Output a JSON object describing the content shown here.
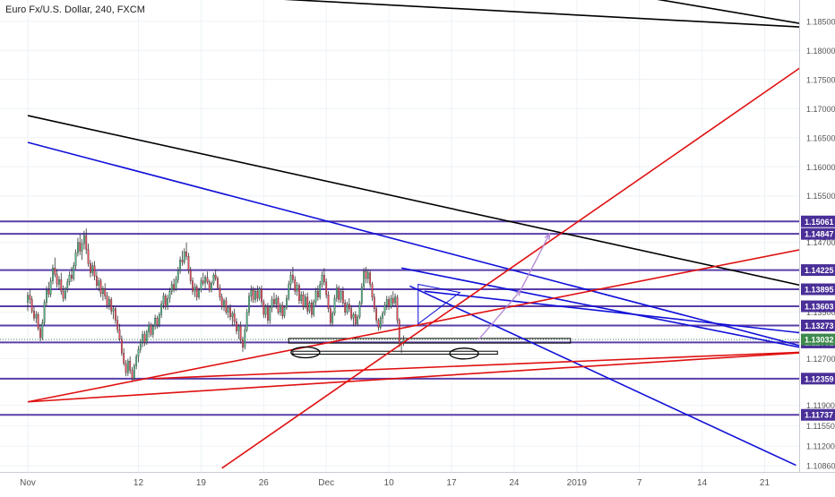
{
  "chart_data": {
    "type": "candlestick",
    "title": "Euro Fx/U.S. Dollar, 240, FXCM",
    "colors": {
      "up": "#53b987",
      "down": "#eb4d5c",
      "blue_line": "#1010d8",
      "red_line": "#e01010",
      "black_line": "#000000",
      "level_line": "#5a3ea8",
      "level_label_bg": "#4a2f98",
      "current_label_bg": "#3e8a4e",
      "projection": "#b58ad2",
      "grid": "#eef2f6",
      "axis_text": "#555555"
    },
    "y_axis": {
      "range": [
        1.1835,
        1.1888
      ],
      "ticks": [
        "1.18500",
        "1.18000",
        "1.17500",
        "1.17000",
        "1.16500",
        "1.16000",
        "1.15500",
        "1.14700",
        "1.13500",
        "1.12700",
        "1.11900",
        "1.11550",
        "1.11200",
        "1.10860"
      ]
    },
    "x_axis": {
      "labels": [
        {
          "text": "Nov",
          "bar": 0
        },
        {
          "text": "12",
          "bar": 53
        },
        {
          "text": "19",
          "bar": 83
        },
        {
          "text": "26",
          "bar": 113
        },
        {
          "text": "Dec",
          "bar": 143
        },
        {
          "text": "10",
          "bar": 173
        },
        {
          "text": "17",
          "bar": 203
        },
        {
          "text": "24",
          "bar": 233
        },
        {
          "text": "2019",
          "bar": 263
        },
        {
          "text": "7",
          "bar": 293
        },
        {
          "text": "14",
          "bar": 323
        },
        {
          "text": "21",
          "bar": 353
        }
      ]
    },
    "price_levels": [
      {
        "label": "1.15061",
        "value": 1.15061
      },
      {
        "label": "1.14847",
        "value": 1.14847
      },
      {
        "label": "1.14225",
        "value": 1.14225
      },
      {
        "label": "1.13895",
        "value": 1.13895
      },
      {
        "label": "1.13603",
        "value": 1.13603
      },
      {
        "label": "1.13273",
        "value": 1.13273
      },
      {
        "label": "1.12981",
        "value": 1.12981
      },
      {
        "label": "1.12359",
        "value": 1.12359
      },
      {
        "label": "1.11737",
        "value": 1.11737
      }
    ],
    "current_price": {
      "label": "1.13032",
      "value": 1.13032
    },
    "trend_lines": [
      {
        "color": "black",
        "from": [
          75,
          1.1897
        ],
        "to": [
          382,
          1.1838
        ]
      },
      {
        "color": "black",
        "from": [
          288,
          1.1896
        ],
        "to": [
          382,
          1.1839
        ]
      },
      {
        "color": "black",
        "from": [
          0,
          1.1688
        ],
        "to": [
          382,
          1.1387
        ]
      },
      {
        "color": "blue",
        "from": [
          0,
          1.1642
        ],
        "to": [
          382,
          1.1281
        ]
      },
      {
        "color": "blue",
        "from": [
          179,
          1.1426
        ],
        "to": [
          382,
          1.1281
        ]
      },
      {
        "color": "blue",
        "from": [
          190,
          1.1386
        ],
        "to": [
          382,
          1.131
        ]
      },
      {
        "color": "blue",
        "from": [
          183,
          1.1395
        ],
        "to": [
          368,
          1.1087
        ]
      },
      {
        "color": "red",
        "from": [
          0,
          1.1196
        ],
        "to": [
          382,
          1.1283
        ]
      },
      {
        "color": "red",
        "from": [
          0,
          1.1196
        ],
        "to": [
          382,
          1.1466
        ]
      },
      {
        "color": "red",
        "from": [
          93,
          1.1082
        ],
        "to": [
          382,
          1.18
        ]
      },
      {
        "color": "red",
        "from": [
          60,
          1.1236
        ],
        "to": [
          382,
          1.1283
        ]
      }
    ],
    "zones": [
      {
        "from_bar": 125,
        "to_bar": 260,
        "top": 1.1305,
        "bottom": 1.1297
      },
      {
        "from_bar": 127,
        "to_bar": 225,
        "top": 1.1283,
        "bottom": 1.1278
      }
    ],
    "ellipses": [
      {
        "bar": 133,
        "value": 1.1281
      },
      {
        "bar": 209,
        "value": 1.1279
      }
    ],
    "projection": {
      "points": [
        [
          216,
          1.1303
        ],
        [
          236,
          1.1387
        ],
        [
          250,
          1.1485
        ]
      ]
    },
    "triangle": {
      "points": [
        [
          187,
          1.1398
        ],
        [
          207,
          1.1384
        ],
        [
          187,
          1.133
        ]
      ]
    },
    "ohlc": [
      [
        1.1367,
        1.1385,
        1.1352,
        1.1379
      ],
      [
        1.1379,
        1.139,
        1.1364,
        1.1372
      ],
      [
        1.1372,
        1.1378,
        1.1348,
        1.1352
      ],
      [
        1.1352,
        1.136,
        1.1335,
        1.134
      ],
      [
        1.134,
        1.1352,
        1.1331,
        1.1346
      ],
      [
        1.1346,
        1.135,
        1.1318,
        1.1322
      ],
      [
        1.1322,
        1.133,
        1.13,
        1.1306
      ],
      [
        1.1306,
        1.1338,
        1.1302,
        1.1332
      ],
      [
        1.1332,
        1.1372,
        1.1328,
        1.1367
      ],
      [
        1.1367,
        1.1395,
        1.136,
        1.1388
      ],
      [
        1.1388,
        1.1402,
        1.1375,
        1.1381
      ],
      [
        1.1381,
        1.141,
        1.1376,
        1.1404
      ],
      [
        1.1404,
        1.1432,
        1.1398,
        1.1426
      ],
      [
        1.1426,
        1.1444,
        1.141,
        1.1415
      ],
      [
        1.1415,
        1.1424,
        1.1392,
        1.1398
      ],
      [
        1.1398,
        1.1412,
        1.1388,
        1.1406
      ],
      [
        1.1406,
        1.1418,
        1.138,
        1.1386
      ],
      [
        1.1386,
        1.1396,
        1.1368,
        1.1374
      ],
      [
        1.1374,
        1.1394,
        1.137,
        1.139
      ],
      [
        1.139,
        1.1408,
        1.1384,
        1.1402
      ],
      [
        1.1402,
        1.142,
        1.1396,
        1.1414
      ],
      [
        1.1414,
        1.1428,
        1.1402,
        1.1408
      ],
      [
        1.1408,
        1.1436,
        1.1404,
        1.143
      ],
      [
        1.143,
        1.1458,
        1.1424,
        1.1452
      ],
      [
        1.1452,
        1.1478,
        1.1446,
        1.147
      ],
      [
        1.147,
        1.1484,
        1.1448,
        1.1455
      ],
      [
        1.1455,
        1.1476,
        1.144,
        1.1468
      ],
      [
        1.1468,
        1.149,
        1.1458,
        1.1482
      ],
      [
        1.1482,
        1.1494,
        1.145,
        1.1458
      ],
      [
        1.1458,
        1.1468,
        1.1428,
        1.1434
      ],
      [
        1.1434,
        1.144,
        1.141,
        1.1418
      ],
      [
        1.1418,
        1.1436,
        1.1412,
        1.143
      ],
      [
        1.143,
        1.1438,
        1.1405,
        1.1412
      ],
      [
        1.1412,
        1.142,
        1.139,
        1.1396
      ],
      [
        1.1396,
        1.141,
        1.1386,
        1.1404
      ],
      [
        1.1404,
        1.1408,
        1.1376,
        1.1382
      ],
      [
        1.1382,
        1.1395,
        1.137,
        1.139
      ],
      [
        1.139,
        1.14,
        1.1372,
        1.1378
      ],
      [
        1.1378,
        1.1385,
        1.1356,
        1.1362
      ],
      [
        1.1362,
        1.1378,
        1.1354,
        1.1372
      ],
      [
        1.1372,
        1.1376,
        1.1346,
        1.1352
      ],
      [
        1.1352,
        1.1362,
        1.1338,
        1.1356
      ],
      [
        1.1356,
        1.136,
        1.133,
        1.1336
      ],
      [
        1.1336,
        1.1344,
        1.1314,
        1.132
      ],
      [
        1.132,
        1.133,
        1.13,
        1.1304
      ],
      [
        1.1304,
        1.131,
        1.1275,
        1.128
      ],
      [
        1.128,
        1.1288,
        1.1258,
        1.1262
      ],
      [
        1.1262,
        1.1268,
        1.124,
        1.1246
      ],
      [
        1.1246,
        1.127,
        1.124,
        1.1266
      ],
      [
        1.1266,
        1.1274,
        1.1244,
        1.125
      ],
      [
        1.125,
        1.1256,
        1.123,
        1.1236
      ],
      [
        1.1236,
        1.1262,
        1.1232,
        1.1258
      ],
      [
        1.1258,
        1.1278,
        1.1252,
        1.1274
      ],
      [
        1.1274,
        1.1292,
        1.1264,
        1.1286
      ],
      [
        1.1286,
        1.1304,
        1.128,
        1.1298
      ],
      [
        1.1298,
        1.1318,
        1.129,
        1.1312
      ],
      [
        1.1312,
        1.1318,
        1.1292,
        1.1298
      ],
      [
        1.1298,
        1.132,
        1.1294,
        1.1316
      ],
      [
        1.1316,
        1.1334,
        1.1306,
        1.1328
      ],
      [
        1.1328,
        1.1332,
        1.1308,
        1.1312
      ],
      [
        1.1312,
        1.133,
        1.1306,
        1.1326
      ],
      [
        1.1326,
        1.1346,
        1.132,
        1.134
      ],
      [
        1.134,
        1.1344,
        1.1322,
        1.1328
      ],
      [
        1.1328,
        1.135,
        1.1324,
        1.1346
      ],
      [
        1.1346,
        1.137,
        1.134,
        1.1364
      ],
      [
        1.1364,
        1.1384,
        1.1356,
        1.1378
      ],
      [
        1.1378,
        1.1382,
        1.1354,
        1.136
      ],
      [
        1.136,
        1.138,
        1.1354,
        1.1374
      ],
      [
        1.1374,
        1.1392,
        1.1366,
        1.1386
      ],
      [
        1.1386,
        1.1404,
        1.138,
        1.1398
      ],
      [
        1.1398,
        1.1408,
        1.1384,
        1.139
      ],
      [
        1.139,
        1.1412,
        1.1386,
        1.1406
      ],
      [
        1.1406,
        1.1428,
        1.14,
        1.1422
      ],
      [
        1.1422,
        1.1446,
        1.1416,
        1.144
      ],
      [
        1.144,
        1.1456,
        1.143,
        1.1436
      ],
      [
        1.1436,
        1.146,
        1.1432,
        1.1454
      ],
      [
        1.1454,
        1.147,
        1.144,
        1.1446
      ],
      [
        1.1446,
        1.1452,
        1.1416,
        1.1422
      ],
      [
        1.1422,
        1.1428,
        1.1398,
        1.1404
      ],
      [
        1.1404,
        1.141,
        1.138,
        1.1386
      ],
      [
        1.1386,
        1.14,
        1.1376,
        1.1394
      ],
      [
        1.1394,
        1.1398,
        1.137,
        1.1376
      ],
      [
        1.1376,
        1.1392,
        1.1372,
        1.1388
      ],
      [
        1.1388,
        1.141,
        1.1384,
        1.1404
      ],
      [
        1.1404,
        1.1418,
        1.1396,
        1.14
      ],
      [
        1.14,
        1.1414,
        1.139,
        1.141
      ],
      [
        1.141,
        1.142,
        1.1398,
        1.1402
      ],
      [
        1.1402,
        1.1406,
        1.1384,
        1.1388
      ],
      [
        1.1388,
        1.1404,
        1.1384,
        1.14
      ],
      [
        1.14,
        1.1418,
        1.1396,
        1.1414
      ],
      [
        1.1414,
        1.1424,
        1.1404,
        1.1408
      ],
      [
        1.1408,
        1.1412,
        1.1388,
        1.1392
      ],
      [
        1.1392,
        1.1398,
        1.137,
        1.1376
      ],
      [
        1.1376,
        1.1382,
        1.1354,
        1.136
      ],
      [
        1.136,
        1.1374,
        1.1352,
        1.137
      ],
      [
        1.137,
        1.1376,
        1.1346,
        1.135
      ],
      [
        1.135,
        1.1362,
        1.134,
        1.1358
      ],
      [
        1.1358,
        1.1364,
        1.1336,
        1.1342
      ],
      [
        1.1342,
        1.1352,
        1.1326,
        1.1348
      ],
      [
        1.1348,
        1.1356,
        1.1328,
        1.1334
      ],
      [
        1.1334,
        1.134,
        1.1312,
        1.1318
      ],
      [
        1.1318,
        1.133,
        1.1304,
        1.1326
      ],
      [
        1.1326,
        1.1334,
        1.1296,
        1.1302
      ],
      [
        1.1302,
        1.1308,
        1.1282,
        1.129
      ],
      [
        1.129,
        1.1326,
        1.1286,
        1.132
      ],
      [
        1.132,
        1.1356,
        1.1316,
        1.135
      ],
      [
        1.135,
        1.1384,
        1.1344,
        1.1378
      ],
      [
        1.1378,
        1.1396,
        1.1368,
        1.1388
      ],
      [
        1.1388,
        1.1394,
        1.1366,
        1.1372
      ],
      [
        1.1372,
        1.1392,
        1.1366,
        1.1386
      ],
      [
        1.1386,
        1.1396,
        1.1368,
        1.1374
      ],
      [
        1.1374,
        1.1394,
        1.137,
        1.139
      ],
      [
        1.139,
        1.1396,
        1.1362,
        1.1368
      ],
      [
        1.1368,
        1.1372,
        1.134,
        1.1346
      ],
      [
        1.1346,
        1.1364,
        1.134,
        1.136
      ],
      [
        1.136,
        1.1366,
        1.133,
        1.1336
      ],
      [
        1.1336,
        1.1362,
        1.133,
        1.1358
      ],
      [
        1.1358,
        1.1378,
        1.135,
        1.1372
      ],
      [
        1.1372,
        1.1384,
        1.1358,
        1.1364
      ],
      [
        1.1364,
        1.138,
        1.1356,
        1.1374
      ],
      [
        1.1374,
        1.1378,
        1.1346,
        1.135
      ],
      [
        1.135,
        1.1366,
        1.1344,
        1.1362
      ],
      [
        1.1362,
        1.1368,
        1.1338,
        1.1344
      ],
      [
        1.1344,
        1.1362,
        1.134,
        1.1358
      ],
      [
        1.1358,
        1.138,
        1.1354,
        1.1374
      ],
      [
        1.1374,
        1.1404,
        1.137,
        1.1398
      ],
      [
        1.1398,
        1.142,
        1.139,
        1.1414
      ],
      [
        1.1414,
        1.1428,
        1.14,
        1.1406
      ],
      [
        1.1406,
        1.1412,
        1.138,
        1.1386
      ],
      [
        1.1386,
        1.1402,
        1.1378,
        1.1396
      ],
      [
        1.1396,
        1.14,
        1.1364,
        1.137
      ],
      [
        1.137,
        1.1386,
        1.1364,
        1.138
      ],
      [
        1.138,
        1.1386,
        1.1354,
        1.136
      ],
      [
        1.136,
        1.1382,
        1.1356,
        1.1376
      ],
      [
        1.1376,
        1.1384,
        1.1346,
        1.1352
      ],
      [
        1.1352,
        1.137,
        1.1348,
        1.1366
      ],
      [
        1.1366,
        1.1372,
        1.134,
        1.1346
      ],
      [
        1.1346,
        1.1372,
        1.1342,
        1.1368
      ],
      [
        1.1368,
        1.1392,
        1.1362,
        1.1386
      ],
      [
        1.1386,
        1.1396,
        1.137,
        1.1376
      ],
      [
        1.1376,
        1.1404,
        1.1372,
        1.1398
      ],
      [
        1.1398,
        1.142,
        1.1392,
        1.1414
      ],
      [
        1.1414,
        1.1426,
        1.1396,
        1.1402
      ],
      [
        1.1402,
        1.1408,
        1.1374,
        1.138
      ],
      [
        1.138,
        1.1386,
        1.135,
        1.1356
      ],
      [
        1.1356,
        1.1362,
        1.1326,
        1.1332
      ],
      [
        1.1332,
        1.1352,
        1.1326,
        1.1348
      ],
      [
        1.1348,
        1.138,
        1.1344,
        1.1374
      ],
      [
        1.1374,
        1.1398,
        1.1368,
        1.1392
      ],
      [
        1.1392,
        1.1396,
        1.1366,
        1.1372
      ],
      [
        1.1372,
        1.139,
        1.1366,
        1.1386
      ],
      [
        1.1386,
        1.1394,
        1.1362,
        1.1366
      ],
      [
        1.1366,
        1.1372,
        1.1344,
        1.135
      ],
      [
        1.135,
        1.1368,
        1.1346,
        1.1364
      ],
      [
        1.1364,
        1.1374,
        1.135,
        1.1356
      ],
      [
        1.1356,
        1.1362,
        1.1336,
        1.134
      ],
      [
        1.134,
        1.135,
        1.1326,
        1.1346
      ],
      [
        1.1346,
        1.1352,
        1.1326,
        1.133
      ],
      [
        1.133,
        1.1346,
        1.1326,
        1.1342
      ],
      [
        1.1342,
        1.137,
        1.1338,
        1.1366
      ],
      [
        1.1366,
        1.14,
        1.1362,
        1.1394
      ],
      [
        1.1394,
        1.1426,
        1.1388,
        1.142
      ],
      [
        1.142,
        1.1428,
        1.14,
        1.1408
      ],
      [
        1.1408,
        1.1424,
        1.14,
        1.1418
      ],
      [
        1.1418,
        1.1422,
        1.1392,
        1.1398
      ],
      [
        1.1398,
        1.1402,
        1.137,
        1.1376
      ],
      [
        1.1376,
        1.1382,
        1.135,
        1.1356
      ],
      [
        1.1356,
        1.136,
        1.133,
        1.1336
      ],
      [
        1.1336,
        1.134,
        1.1318,
        1.1324
      ],
      [
        1.1324,
        1.1344,
        1.132,
        1.134
      ],
      [
        1.134,
        1.1352,
        1.133,
        1.1348
      ],
      [
        1.1348,
        1.1368,
        1.1344,
        1.1362
      ],
      [
        1.1362,
        1.1378,
        1.1354,
        1.1372
      ],
      [
        1.1372,
        1.1378,
        1.1354,
        1.136
      ],
      [
        1.136,
        1.138,
        1.1356,
        1.1374
      ],
      [
        1.1374,
        1.1386,
        1.136,
        1.1366
      ],
      [
        1.1366,
        1.1382,
        1.136,
        1.1376
      ],
      [
        1.1376,
        1.138,
        1.133,
        1.1336
      ],
      [
        1.1336,
        1.134,
        1.129,
        1.1296
      ],
      [
        1.1296,
        1.13,
        1.128,
        1.1298
      ],
      [
        1.1298,
        1.131,
        1.1292,
        1.1303
      ]
    ]
  }
}
